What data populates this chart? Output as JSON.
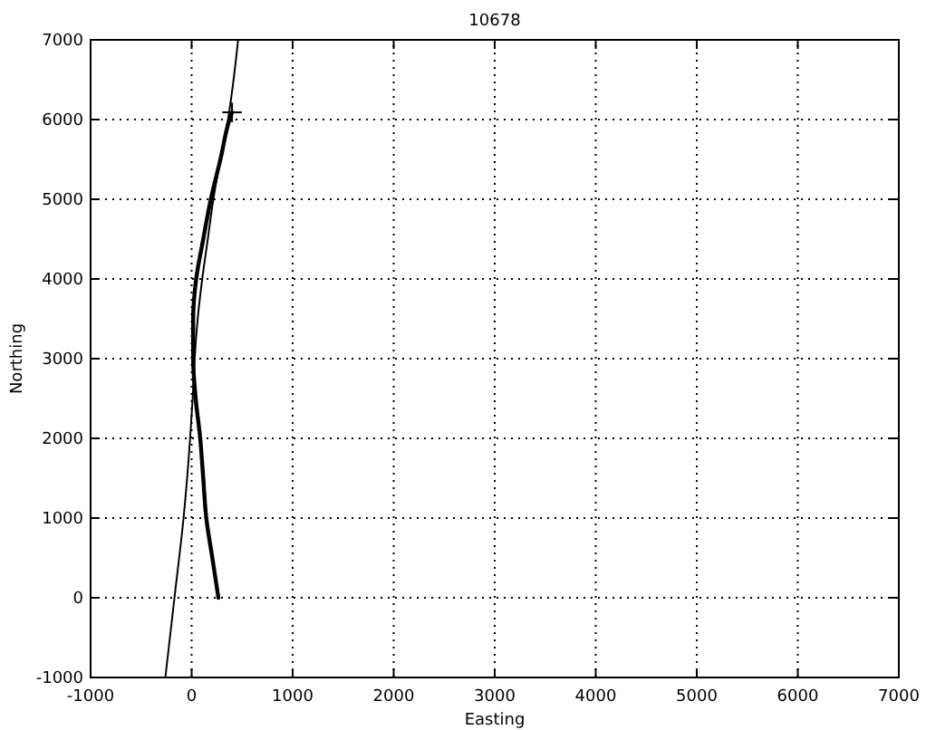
{
  "chart_data": {
    "type": "line",
    "title": "10678",
    "xlabel": "Easting",
    "ylabel": "Northing",
    "xlim": [
      -1000,
      7000
    ],
    "ylim": [
      -1000,
      7000
    ],
    "xticks": [
      -1000,
      0,
      1000,
      2000,
      3000,
      4000,
      5000,
      6000,
      7000
    ],
    "yticks": [
      -1000,
      0,
      1000,
      2000,
      3000,
      4000,
      5000,
      6000,
      7000
    ],
    "grid": true,
    "series": [
      {
        "color": "#000000",
        "x": [
          -260,
          -170,
          -80,
          -15,
          10,
          30,
          60,
          105,
          160,
          215,
          285,
          360,
          415,
          460
        ],
        "values": [
          -1000,
          0,
          1000,
          2000,
          2500,
          3000,
          3500,
          4000,
          4500,
          5000,
          5500,
          6000,
          6500,
          7000
        ]
      },
      {
        "color": "#000000",
        "x": [
          265,
          205,
          145,
          115,
          85,
          40,
          15,
          15,
          45,
          115,
          190,
          285,
          375,
          400
        ],
        "values": [
          0,
          500,
          1000,
          1500,
          2000,
          2500,
          3000,
          3500,
          4000,
          4500,
          5000,
          5500,
          6000,
          6090
        ]
      },
      {
        "type": "scatter",
        "marker": "cross",
        "color": "#000000",
        "x": [
          400
        ],
        "values": [
          6090
        ]
      }
    ]
  }
}
